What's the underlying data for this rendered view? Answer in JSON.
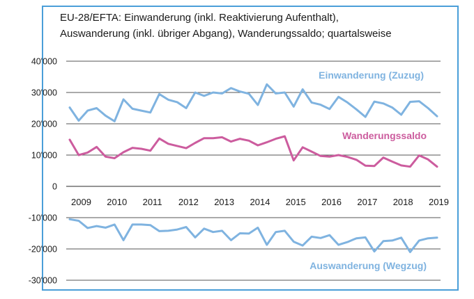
{
  "chart_data": {
    "type": "line",
    "title": "EU-28/EFTA: Einwanderung (inkl. Reaktivierung Aufenthalt), Auswanderung (inkl. übriger Abgang), Wanderungssaldo; quartalsweise",
    "title_line1": "EU-28/EFTA: Einwanderung (inkl. Reaktivierung Aufenthalt),",
    "title_line2": "Auswanderung (inkl. übriger Abgang), Wanderungssaldo; quartalsweise",
    "xlabel": "",
    "ylabel": "",
    "ylim": [
      -30000,
      40000
    ],
    "yticks": [
      {
        "v": 40000,
        "label": "40'000"
      },
      {
        "v": 30000,
        "label": "30'000"
      },
      {
        "v": 20000,
        "label": "20'000"
      },
      {
        "v": 10000,
        "label": "10'000"
      },
      {
        "v": 0,
        "label": "0"
      },
      {
        "v": -10000,
        "label": "-10'000"
      },
      {
        "v": -20000,
        "label": "-20'000"
      },
      {
        "v": -30000,
        "label": "-30'000"
      }
    ],
    "xticks": [
      "2009",
      "2010",
      "2011",
      "2012",
      "2013",
      "2014",
      "2015",
      "2016",
      "2017",
      "2018",
      "2019"
    ],
    "grid": true,
    "series": [
      {
        "name": "Einwanderung (Zuzug)",
        "color": "#7fb3e0",
        "values": [
          25200,
          21000,
          24200,
          25000,
          22600,
          20800,
          27800,
          24800,
          24200,
          23600,
          29500,
          27700,
          26900,
          25000,
          30000,
          28900,
          30000,
          29700,
          31400,
          30300,
          29600,
          26000,
          32600,
          29700,
          30000,
          25500,
          31000,
          26800,
          26100,
          24700,
          28600,
          26800,
          24600,
          22200,
          27100,
          26500,
          25200,
          22900,
          27000,
          27200,
          25000,
          22400
        ]
      },
      {
        "name": "Wanderungssaldo",
        "color": "#cc5c9e",
        "values": [
          14900,
          10000,
          10800,
          12600,
          9500,
          9000,
          10900,
          12300,
          12000,
          11400,
          15300,
          13600,
          12900,
          12200,
          13900,
          15400,
          15400,
          15700,
          14300,
          15200,
          14600,
          13100,
          14100,
          15200,
          16000,
          8300,
          12500,
          11100,
          9700,
          9500,
          10000,
          9400,
          8500,
          6600,
          6500,
          9200,
          7900,
          6700,
          6300,
          9900,
          8600,
          6300
        ]
      },
      {
        "name": "Auswanderung (Wegzug)",
        "color": "#7fb3e0",
        "values": [
          -10500,
          -11000,
          -13300,
          -12700,
          -13200,
          -12200,
          -17200,
          -12200,
          -12200,
          -12400,
          -14300,
          -14200,
          -13800,
          -13000,
          -16300,
          -13500,
          -14600,
          -14200,
          -17200,
          -15000,
          -15100,
          -13200,
          -18700,
          -14600,
          -14200,
          -17700,
          -18900,
          -16100,
          -16500,
          -15600,
          -18700,
          -17800,
          -16600,
          -16300,
          -20800,
          -17500,
          -17300,
          -16400,
          -21000,
          -17300,
          -16600,
          -16400
        ]
      }
    ]
  }
}
